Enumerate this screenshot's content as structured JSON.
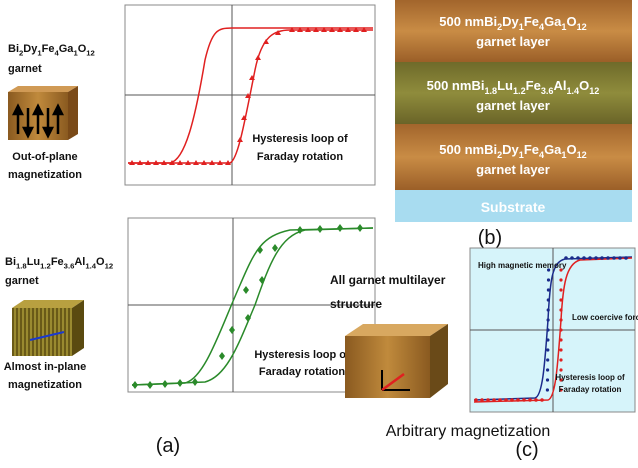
{
  "panel_a": {
    "top": {
      "formula": [
        [
          "Bi",
          "2"
        ],
        [
          "Dy",
          "1"
        ],
        [
          "Fe",
          "4"
        ],
        [
          "Ga",
          "1"
        ],
        [
          "O",
          "12"
        ]
      ],
      "material": "garnet",
      "orientation": [
        "Out-of-plane",
        "magnetization"
      ],
      "loop_label": [
        "Hysteresis loop of",
        "Faraday rotation"
      ]
    },
    "bottom": {
      "formula": [
        [
          "Bi",
          "1.8"
        ],
        [
          "Lu",
          "1.2"
        ],
        [
          "Fe",
          "3.6"
        ],
        [
          "Al",
          "1.4"
        ],
        [
          "O",
          "12"
        ]
      ],
      "material": "garnet",
      "orientation": [
        "Almost in-plane",
        "magnetization"
      ],
      "loop_label": [
        "Hysteresis loop of",
        "Faraday rotation"
      ]
    },
    "label": "(a)"
  },
  "panel_b": {
    "layers": [
      {
        "thickness": "500 nm",
        "formula": [
          [
            "Bi",
            "2"
          ],
          [
            "Dy",
            "1"
          ],
          [
            "Fe",
            "4"
          ],
          [
            "Ga",
            "1"
          ],
          [
            "O",
            "12"
          ]
        ],
        "name": "garnet layer"
      },
      {
        "thickness": "500 nm",
        "formula": [
          [
            "Bi",
            "1.8"
          ],
          [
            "Lu",
            "1.2"
          ],
          [
            "Fe",
            "3.6"
          ],
          [
            "Al",
            "1.4"
          ],
          [
            "O",
            "12"
          ]
        ],
        "name": "garnet layer"
      },
      {
        "thickness": "500 nm",
        "formula": [
          [
            "Bi",
            "2"
          ],
          [
            "Dy",
            "1"
          ],
          [
            "Fe",
            "4"
          ],
          [
            "Ga",
            "1"
          ],
          [
            "O",
            "12"
          ]
        ],
        "name": "garnet layer"
      }
    ],
    "substrate": "Substrate",
    "label": "(b)"
  },
  "panel_c": {
    "structure": [
      "All garnet multilayer",
      "structure"
    ],
    "annotations": [
      "High magnetic memory",
      "Low coercive force"
    ],
    "loop_label": [
      "Hysteresis loop of",
      "Faraday rotation"
    ],
    "caption": "Arbitrary magnetization",
    "label": "(c)"
  }
}
